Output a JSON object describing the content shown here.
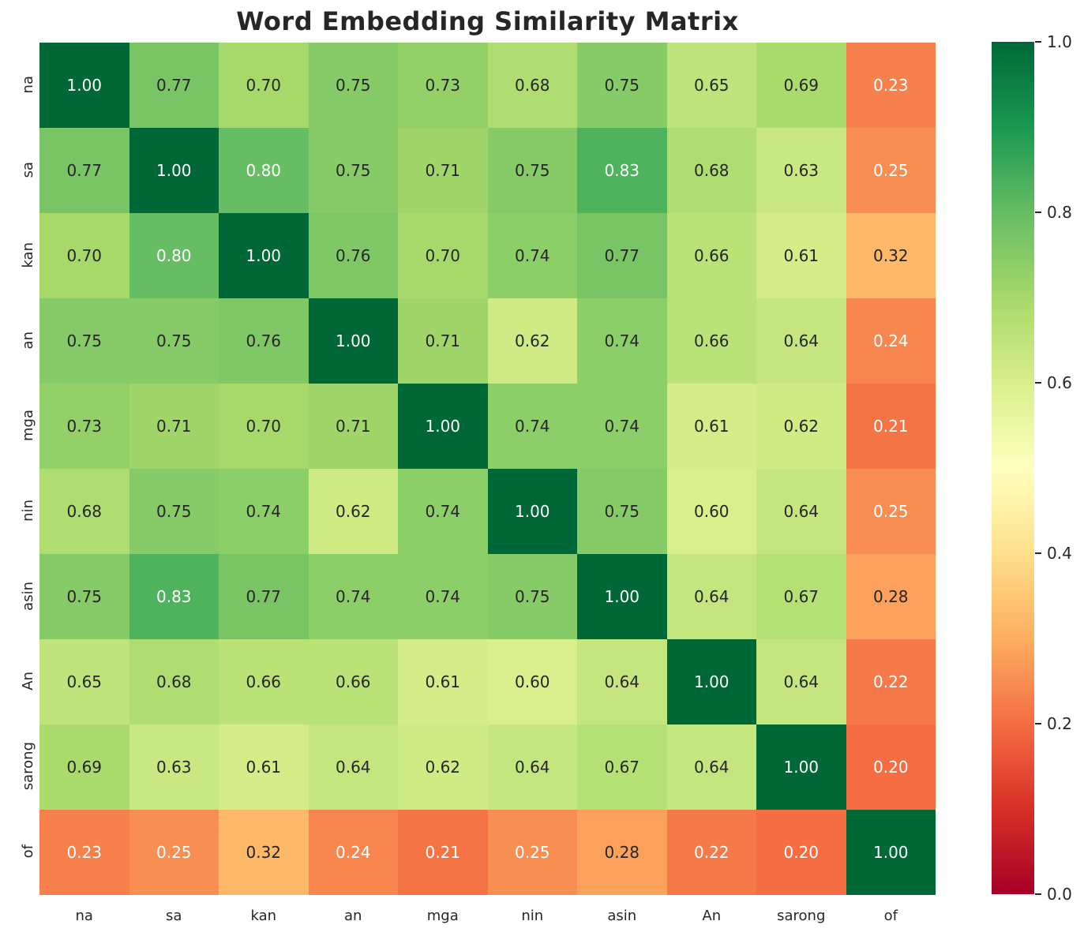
{
  "chart_data": {
    "type": "heatmap",
    "title": "Word Embedding Similarity Matrix",
    "x_categories": [
      "na",
      "sa",
      "kan",
      "an",
      "mga",
      "nin",
      "asin",
      "An",
      "sarong",
      "of"
    ],
    "y_categories": [
      "na",
      "sa",
      "kan",
      "an",
      "mga",
      "nin",
      "asin",
      "An",
      "sarong",
      "of"
    ],
    "matrix": [
      [
        1.0,
        0.77,
        0.7,
        0.75,
        0.73,
        0.68,
        0.75,
        0.65,
        0.69,
        0.23
      ],
      [
        0.77,
        1.0,
        0.8,
        0.75,
        0.71,
        0.75,
        0.83,
        0.68,
        0.63,
        0.25
      ],
      [
        0.7,
        0.8,
        1.0,
        0.76,
        0.7,
        0.74,
        0.77,
        0.66,
        0.61,
        0.32
      ],
      [
        0.75,
        0.75,
        0.76,
        1.0,
        0.71,
        0.62,
        0.74,
        0.66,
        0.64,
        0.24
      ],
      [
        0.73,
        0.71,
        0.7,
        0.71,
        1.0,
        0.74,
        0.74,
        0.61,
        0.62,
        0.21
      ],
      [
        0.68,
        0.75,
        0.74,
        0.62,
        0.74,
        1.0,
        0.75,
        0.6,
        0.64,
        0.25
      ],
      [
        0.75,
        0.83,
        0.77,
        0.74,
        0.74,
        0.75,
        1.0,
        0.64,
        0.67,
        0.28
      ],
      [
        0.65,
        0.68,
        0.66,
        0.66,
        0.61,
        0.6,
        0.64,
        1.0,
        0.64,
        0.22
      ],
      [
        0.69,
        0.63,
        0.61,
        0.64,
        0.62,
        0.64,
        0.67,
        0.64,
        1.0,
        0.2
      ],
      [
        0.23,
        0.25,
        0.32,
        0.24,
        0.21,
        0.25,
        0.28,
        0.22,
        0.2,
        1.0
      ]
    ],
    "vmin": 0.0,
    "vmax": 1.0,
    "annotation_decimals": 2,
    "grid": false,
    "legend_position": "colorbar-right",
    "colormap": {
      "name": "RdYlGn",
      "anchors": [
        "#a50026",
        "#d73027",
        "#f46d43",
        "#fdae61",
        "#fee08b",
        "#ffffbf",
        "#d9ef8b",
        "#a6d96a",
        "#66bd63",
        "#1a9850",
        "#006837"
      ]
    },
    "colorbar": {
      "ticks": [
        {
          "value": 1.0,
          "label": "1.0"
        },
        {
          "value": 0.8,
          "label": "0.8"
        },
        {
          "value": 0.6,
          "label": "0.6"
        },
        {
          "value": 0.4,
          "label": "0.4"
        },
        {
          "value": 0.2,
          "label": "0.2"
        },
        {
          "value": 0.0,
          "label": "0.0"
        }
      ]
    },
    "text_colors": {
      "dark": "#262626",
      "light": "#ffffff",
      "luminance_threshold": 0.408
    }
  }
}
